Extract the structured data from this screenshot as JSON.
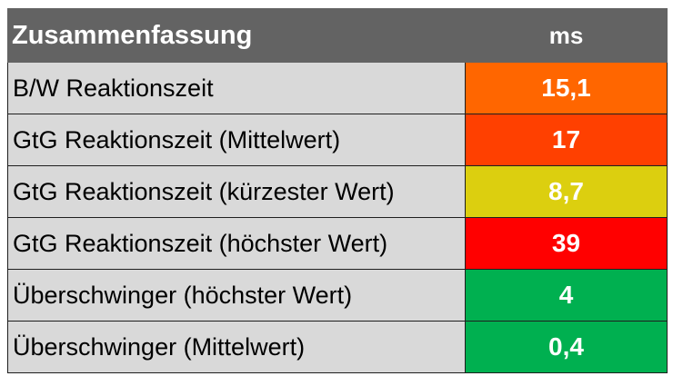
{
  "table": {
    "header": {
      "label": "Zusammenfassung",
      "unit": "ms"
    },
    "rows": [
      {
        "label": "B/W Reaktionszeit",
        "value": "15,1",
        "color": "#ff6600"
      },
      {
        "label": "GtG Reaktionszeit (Mittelwert)",
        "value": "17",
        "color": "#ff4000"
      },
      {
        "label": "GtG Reaktionszeit (kürzester Wert)",
        "value": "8,7",
        "color": "#dccf0f"
      },
      {
        "label": "GtG Reaktionszeit (höchster Wert)",
        "value": "39",
        "color": "#ff0000"
      },
      {
        "label": "Überschwinger (höchster Wert)",
        "value": "4",
        "color": "#00b050"
      },
      {
        "label": "Überschwinger (Mittelwert)",
        "value": "0,4",
        "color": "#00b050"
      }
    ]
  }
}
